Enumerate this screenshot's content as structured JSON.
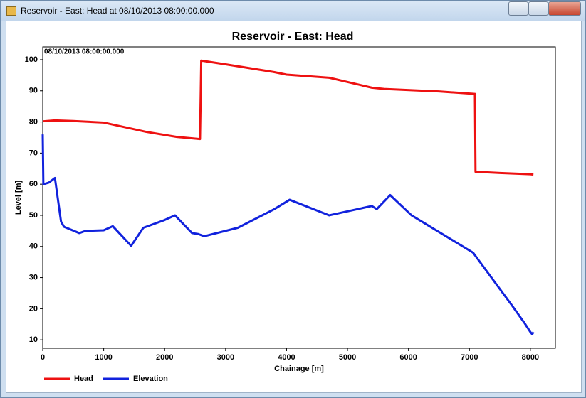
{
  "window": {
    "title": "Reservoir - East: Head at 08/10/2013 08:00:00.000"
  },
  "chart_data": {
    "type": "line",
    "title": "Reservoir - East: Head",
    "subtitle": "08/10/2013 08:00:00.000",
    "x_label": "Chainage [m]",
    "y_label": "Level [m]",
    "xlim": [
      0,
      8410
    ],
    "ylim": [
      7.3,
      104.1
    ],
    "xticks": [
      0,
      1000,
      2000,
      3000,
      4000,
      5000,
      6000,
      7000,
      8000
    ],
    "yticks": [
      10,
      20,
      30,
      40,
      50,
      60,
      70,
      80,
      90,
      100
    ],
    "legend": "bottom",
    "series": [
      {
        "name": "Head",
        "color": "#ee1111",
        "x": [
          0,
          200,
          500,
          1000,
          1700,
          2200,
          2580,
          2600,
          3000,
          3800,
          4000,
          4700,
          5400,
          5600,
          6500,
          7090,
          7100,
          7500,
          8000,
          8050
        ],
        "values": [
          80.2,
          80.5,
          80.3,
          79.8,
          76.8,
          75.2,
          74.5,
          99.7,
          98.5,
          96,
          95.2,
          94.2,
          91,
          90.6,
          89.8,
          89,
          64,
          63.6,
          63.2,
          63.1
        ]
      },
      {
        "name": "Elevation",
        "color": "#1122dd",
        "x": [
          0,
          10,
          100,
          200,
          300,
          350,
          600,
          700,
          1000,
          1150,
          1450,
          1650,
          2000,
          2170,
          2450,
          2550,
          2650,
          3200,
          3800,
          4050,
          4700,
          5400,
          5480,
          5700,
          6050,
          7060,
          7700,
          7900,
          8000,
          8030,
          8050
        ],
        "values": [
          76,
          60,
          60.5,
          62,
          48,
          46.3,
          44.3,
          45,
          45.2,
          46.5,
          40.2,
          46,
          48.5,
          50,
          44.3,
          44,
          43.3,
          46,
          52,
          55,
          50,
          53,
          52,
          56.5,
          50,
          38,
          21,
          15.5,
          12.5,
          11.8,
          12.5
        ]
      }
    ]
  }
}
